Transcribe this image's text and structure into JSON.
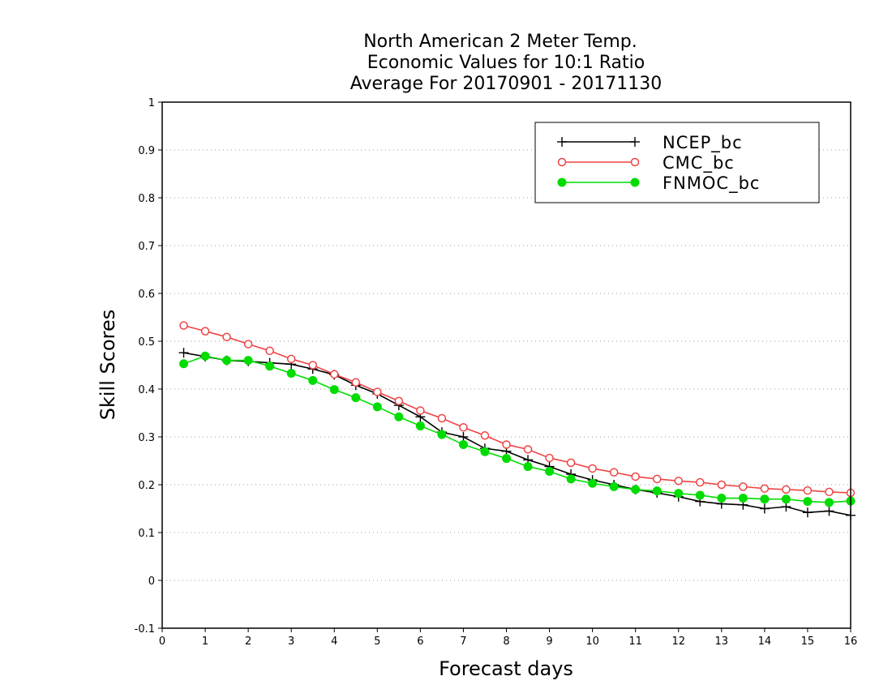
{
  "chart_data": {
    "type": "line",
    "title_lines": [
      "North American 2 Meter Temp.",
      "Economic Values for 10:1 Ratio",
      "Average For 20170901 - 20171130"
    ],
    "xlabel": "Forecast days",
    "ylabel": "Skill Scores",
    "xlim": [
      0,
      16
    ],
    "ylim": [
      -0.1,
      1
    ],
    "x_ticks": [
      0,
      1,
      2,
      3,
      4,
      5,
      6,
      7,
      8,
      9,
      10,
      11,
      12,
      13,
      14,
      15,
      16
    ],
    "y_ticks": [
      -0.1,
      0,
      0.1,
      0.2,
      0.3,
      0.4,
      0.5,
      0.6,
      0.7,
      0.8,
      0.9,
      1
    ],
    "y_tick_labels": [
      "-0.1",
      "0",
      "0.1",
      "0.2",
      "0.3",
      "0.4",
      "0.5",
      "0.6",
      "0.7",
      "0.8",
      "0.9",
      "1"
    ],
    "grid": "horizontal dotted",
    "legend_position": "top-right",
    "x": [
      0.5,
      1,
      1.5,
      2,
      2.5,
      3,
      3.5,
      4,
      4.5,
      5,
      5.5,
      6,
      6.5,
      7,
      7.5,
      8,
      8.5,
      9,
      9.5,
      10,
      10.5,
      11,
      11.5,
      12,
      12.5,
      13,
      13.5,
      14,
      14.5,
      15,
      15.5,
      16
    ],
    "series": [
      {
        "name": "NCEP_bc",
        "color": "#000000",
        "marker": "plus",
        "values": [
          0.476,
          0.468,
          0.46,
          0.458,
          0.455,
          0.452,
          0.442,
          0.43,
          0.408,
          0.39,
          0.366,
          0.342,
          0.31,
          0.3,
          0.276,
          0.27,
          0.252,
          0.238,
          0.222,
          0.21,
          0.2,
          0.19,
          0.183,
          0.175,
          0.165,
          0.16,
          0.158,
          0.15,
          0.154,
          0.142,
          0.145,
          0.136
        ]
      },
      {
        "name": "CMC_bc",
        "color": "#ee4444",
        "marker": "open-circle",
        "values": [
          0.533,
          0.521,
          0.509,
          0.494,
          0.48,
          0.463,
          0.45,
          0.431,
          0.414,
          0.394,
          0.375,
          0.355,
          0.339,
          0.32,
          0.303,
          0.284,
          0.274,
          0.256,
          0.246,
          0.234,
          0.226,
          0.217,
          0.212,
          0.208,
          0.205,
          0.2,
          0.196,
          0.192,
          0.19,
          0.188,
          0.185,
          0.183
        ]
      },
      {
        "name": "FNMOC_bc",
        "color": "#00dc00",
        "marker": "filled-circle",
        "values": [
          0.453,
          0.469,
          0.46,
          0.46,
          0.448,
          0.433,
          0.418,
          0.399,
          0.382,
          0.363,
          0.342,
          0.323,
          0.305,
          0.284,
          0.269,
          0.255,
          0.238,
          0.228,
          0.212,
          0.203,
          0.196,
          0.19,
          0.187,
          0.182,
          0.178,
          0.172,
          0.172,
          0.17,
          0.17,
          0.165,
          0.163,
          0.166
        ]
      }
    ]
  }
}
